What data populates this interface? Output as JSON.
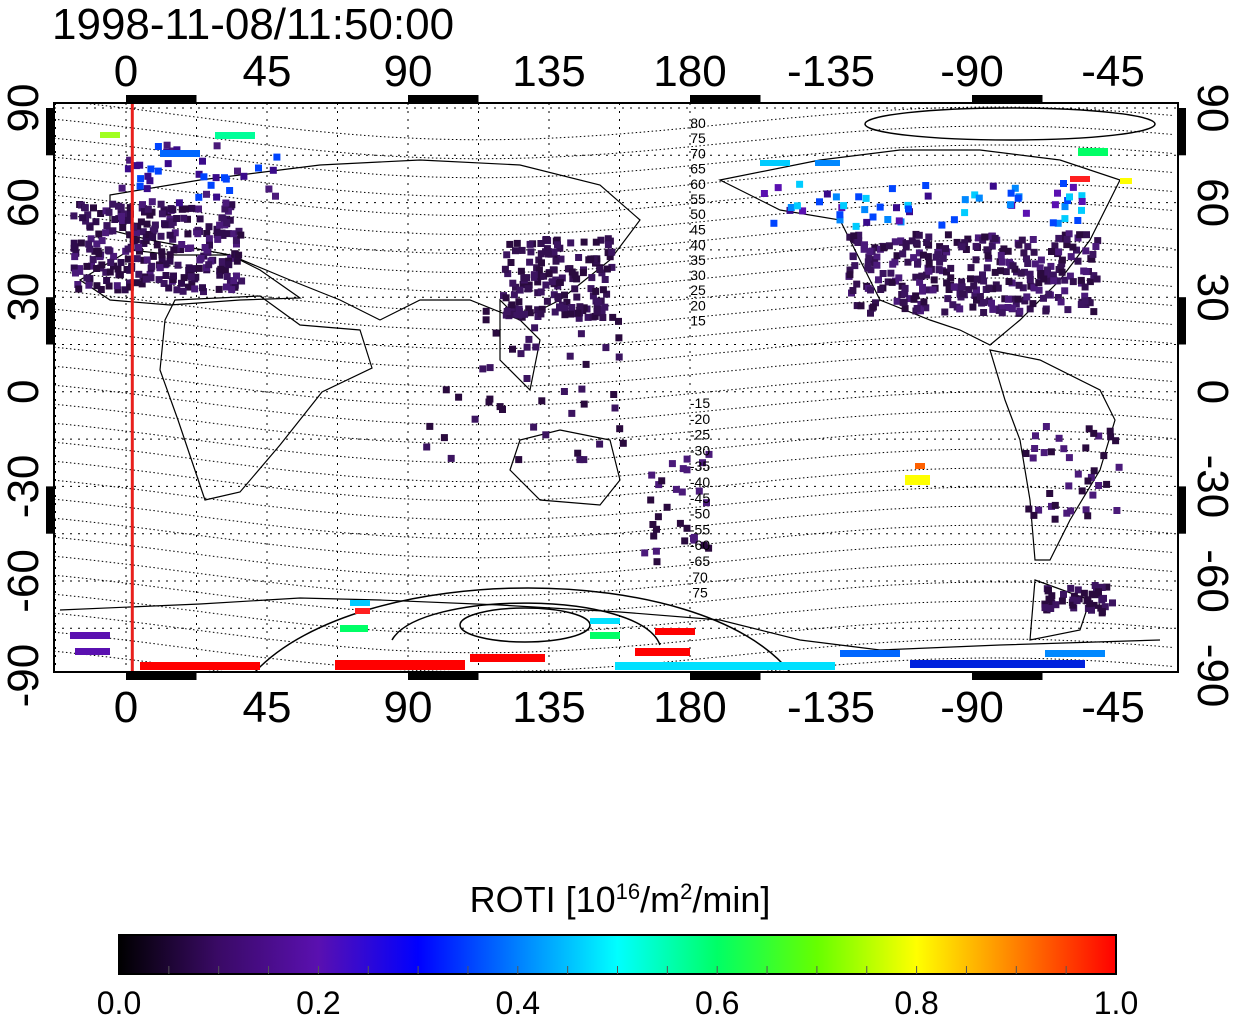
{
  "title": "1998-11-08/11:50:00",
  "map": {
    "lon_ticks": [
      "0",
      "45",
      "90",
      "135",
      "180",
      "-135",
      "-90",
      "-45"
    ],
    "lat_ticks": [
      "90",
      "60",
      "30",
      "0",
      "-30",
      "-60",
      "-90"
    ],
    "terminator_longitude": 2,
    "north_contour_labels": [
      "80",
      "75",
      "70",
      "65",
      "60",
      "55",
      "50",
      "45",
      "40",
      "35",
      "30",
      "25",
      "20",
      "15"
    ],
    "south_contour_labels": [
      "-15",
      "-20",
      "-25",
      "-30",
      "-35",
      "-40",
      "-45",
      "-50",
      "-55",
      "-60",
      "-65",
      "70",
      "75"
    ],
    "colors": {
      "terminator": "#e8201c",
      "frame": "#000000"
    }
  },
  "colorbar": {
    "title_prefix": "ROTI  [10",
    "title_sup1": "16",
    "title_mid": "/m",
    "title_sup2": "2",
    "title_suffix": "/min]",
    "ticks": [
      "0.0",
      "0.2",
      "0.4",
      "0.6",
      "0.8",
      "1.0"
    ],
    "range": [
      0.0,
      1.0
    ],
    "stops": [
      "#000000",
      "#3a0a66",
      "#5a10b0",
      "#0000ff",
      "#0080ff",
      "#00ffff",
      "#00ff66",
      "#66ff00",
      "#ffff00",
      "#ff8000",
      "#ff0000"
    ]
  }
}
